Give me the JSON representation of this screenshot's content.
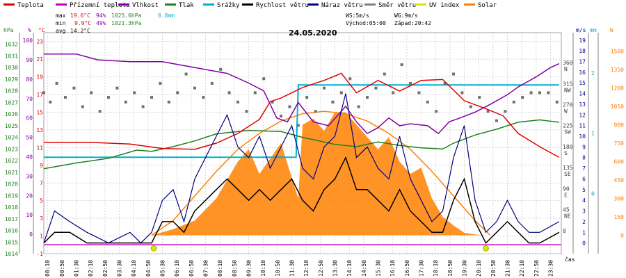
{
  "chart_data": {
    "type": "line",
    "title": "24.05.2020",
    "x_axis_label": "čas",
    "x_ticks": [
      "00:10",
      "00:50",
      "01:30",
      "02:10",
      "02:50",
      "03:30",
      "04:10",
      "04:50",
      "05:30",
      "06:10",
      "06:50",
      "07:30",
      "08:10",
      "08:50",
      "09:30",
      "10:10",
      "10:50",
      "11:30",
      "12:10",
      "12:50",
      "13:30",
      "14:10",
      "14:50",
      "15:30",
      "16:10",
      "16:50",
      "17:30",
      "18:10",
      "18:50",
      "19:30",
      "20:10",
      "20:50",
      "21:30",
      "22:10",
      "22:50",
      "23:30"
    ],
    "legend": [
      {
        "name": "Teplota",
        "color": "#e00000"
      },
      {
        "name": "Přízemní teplota",
        "color": "#c000c0"
      },
      {
        "name": "Vlhkost",
        "color": "#8000a0"
      },
      {
        "name": "Tlak",
        "color": "#208020"
      },
      {
        "name": "Srážky",
        "color": "#00b0d0"
      },
      {
        "name": "Rychlost větru",
        "color": "#000000"
      },
      {
        "name": "Náraz větru",
        "color": "#000080"
      },
      {
        "name": "Směr větru",
        "color": "#808080"
      },
      {
        "name": "UV index",
        "color": "#e0e000"
      },
      {
        "name": "Solar",
        "color": "#ff8000"
      }
    ],
    "stats": {
      "max": {
        "label": "max",
        "temp": "19.6°C",
        "hum": "94%",
        "press": "1025.6hPa",
        "rain": "0.8mm"
      },
      "min": {
        "label": "min",
        "temp": "9.9°C",
        "hum": "49%",
        "press": "1021.3hPa"
      },
      "avg": {
        "label": "avg",
        "temp": "14.2°C"
      },
      "ws": "WS:5m/s",
      "wg": "WG:9m/s",
      "sunrise": "Východ:05:00",
      "sunset": "Západ:20:42"
    },
    "axes": {
      "pressure": {
        "unit": "hPa",
        "ticks": [
          "1032",
          "1031",
          "1030",
          "1029",
          "1028",
          "1027",
          "1026",
          "1025",
          "1024",
          "1023",
          "1022",
          "1021",
          "1020",
          "1019",
          "1018",
          "1017",
          "1016",
          "1015",
          "1014"
        ]
      },
      "humidity": {
        "unit": "%",
        "ticks": [
          "100",
          "90",
          "80",
          "70",
          "60",
          "50",
          "40",
          "30",
          "20",
          "10",
          "0"
        ]
      },
      "temperature": {
        "unit": "°C",
        "ticks": [
          "23",
          "21",
          "19",
          "17",
          "15",
          "13",
          "11",
          "9",
          "7",
          "5",
          "3",
          "1",
          "-1"
        ]
      },
      "direction": {
        "ticks": [
          [
            "360",
            "N"
          ],
          [
            "315",
            "NW"
          ],
          [
            "270",
            "W"
          ],
          [
            "225",
            "SW"
          ],
          [
            "180",
            "S"
          ],
          [
            "135",
            "SE"
          ],
          [
            "90",
            "E"
          ],
          [
            "45",
            "NE"
          ],
          [
            "0",
            ""
          ]
        ]
      },
      "wind": {
        "unit": "m/s",
        "ticks": [
          "19",
          "18",
          "17",
          "16",
          "15",
          "14",
          "13",
          "12",
          "11",
          "10",
          "9",
          "8",
          "7",
          "6",
          "5",
          "4",
          "3",
          "2",
          "1",
          "0"
        ]
      },
      "rain": {
        "unit": "mm",
        "ticks": [
          "2",
          "1",
          "0"
        ]
      },
      "solar": {
        "unit": "W",
        "ticks": [
          "1500",
          "1350",
          "1200",
          "1050",
          "900",
          "750",
          "600",
          "450",
          "300",
          "150",
          "0"
        ]
      }
    },
    "series": {
      "temperature": [
        [
          0,
          11.6
        ],
        [
          2,
          11.6
        ],
        [
          4,
          11.4
        ],
        [
          5.5,
          10.9
        ],
        [
          7,
          10.8
        ],
        [
          8,
          11.5
        ],
        [
          9,
          12.6
        ],
        [
          10,
          14.2
        ],
        [
          10.5,
          16.2
        ],
        [
          11,
          16.6
        ],
        [
          12,
          17.8
        ],
        [
          13,
          18.6
        ],
        [
          13.8,
          19.4
        ],
        [
          14.5,
          17.2
        ],
        [
          15.5,
          18.6
        ],
        [
          16.5,
          17.4
        ],
        [
          17.5,
          18.6
        ],
        [
          18.5,
          18.7
        ],
        [
          19.5,
          16.3
        ],
        [
          20.5,
          15.4
        ],
        [
          21.3,
          14.6
        ],
        [
          22,
          12.6
        ],
        [
          23,
          11.1
        ],
        [
          23.9,
          9.9
        ]
      ],
      "humidity": [
        [
          0,
          93
        ],
        [
          1.5,
          93
        ],
        [
          2.5,
          90
        ],
        [
          4,
          89
        ],
        [
          5.5,
          89
        ],
        [
          6.5,
          87
        ],
        [
          7.5,
          85
        ],
        [
          8.5,
          83
        ],
        [
          9.5,
          78
        ],
        [
          10.2,
          74
        ],
        [
          10.8,
          60
        ],
        [
          11.3,
          58
        ],
        [
          11.8,
          68
        ],
        [
          12.5,
          58
        ],
        [
          13.2,
          56
        ],
        [
          14,
          66
        ],
        [
          14.5,
          58
        ],
        [
          15,
          52
        ],
        [
          15.5,
          55
        ],
        [
          16,
          60
        ],
        [
          16.5,
          56
        ],
        [
          17,
          57
        ],
        [
          17.8,
          56
        ],
        [
          18.3,
          52
        ],
        [
          18.8,
          58
        ],
        [
          19.3,
          60
        ],
        [
          20,
          63
        ],
        [
          20.7,
          67
        ],
        [
          21.5,
          72
        ],
        [
          22,
          76
        ],
        [
          22.8,
          81
        ],
        [
          23.5,
          86
        ],
        [
          23.9,
          88
        ]
      ],
      "pressure": [
        [
          0,
          1021.3
        ],
        [
          1.5,
          1021.8
        ],
        [
          3,
          1022.2
        ],
        [
          4.3,
          1022.9
        ],
        [
          5,
          1022.8
        ],
        [
          6,
          1023.2
        ],
        [
          7,
          1023.7
        ],
        [
          8,
          1024.3
        ],
        [
          9.5,
          1024.6
        ],
        [
          11,
          1024.5
        ],
        [
          12,
          1024.0
        ],
        [
          13.5,
          1023.4
        ],
        [
          14.5,
          1023.2
        ],
        [
          15.5,
          1023.6
        ],
        [
          16.5,
          1023.3
        ],
        [
          17.5,
          1023.1
        ],
        [
          18.5,
          1023.0
        ],
        [
          19,
          1023.5
        ],
        [
          20,
          1024.2
        ],
        [
          21,
          1024.7
        ],
        [
          22,
          1025.3
        ],
        [
          23,
          1025.5
        ],
        [
          23.9,
          1025.3
        ]
      ],
      "rain": [
        [
          0,
          0.6
        ],
        [
          11.7,
          0.6
        ],
        [
          11.8,
          1.8
        ],
        [
          23.9,
          1.8
        ]
      ],
      "wind_gust": [
        [
          0,
          0
        ],
        [
          0.5,
          3
        ],
        [
          1.2,
          2
        ],
        [
          2,
          1
        ],
        [
          3,
          0
        ],
        [
          4,
          1
        ],
        [
          4.5,
          0
        ],
        [
          5,
          1
        ],
        [
          5.5,
          4
        ],
        [
          6,
          5
        ],
        [
          6.5,
          2
        ],
        [
          7,
          6
        ],
        [
          7.5,
          8
        ],
        [
          8,
          10
        ],
        [
          8.5,
          12
        ],
        [
          9,
          9
        ],
        [
          9.5,
          8
        ],
        [
          10,
          10
        ],
        [
          10.5,
          7
        ],
        [
          11,
          9
        ],
        [
          11.5,
          11
        ],
        [
          12,
          7
        ],
        [
          12.5,
          6
        ],
        [
          13,
          9
        ],
        [
          13.5,
          10
        ],
        [
          14,
          14
        ],
        [
          14.5,
          8
        ],
        [
          15,
          9
        ],
        [
          15.5,
          7
        ],
        [
          16,
          6
        ],
        [
          16.5,
          10
        ],
        [
          17,
          6
        ],
        [
          17.5,
          4
        ],
        [
          18,
          2
        ],
        [
          18.5,
          3
        ],
        [
          19,
          8
        ],
        [
          19.5,
          11
        ],
        [
          20,
          4
        ],
        [
          20.5,
          1
        ],
        [
          21,
          2
        ],
        [
          21.5,
          4
        ],
        [
          22,
          2
        ],
        [
          22.5,
          1
        ],
        [
          23,
          1
        ],
        [
          23.9,
          2
        ]
      ],
      "wind_speed": [
        [
          0,
          0
        ],
        [
          0.5,
          1
        ],
        [
          1.2,
          1
        ],
        [
          2,
          0
        ],
        [
          3,
          0
        ],
        [
          4,
          0
        ],
        [
          5,
          0
        ],
        [
          5.5,
          2
        ],
        [
          6,
          2
        ],
        [
          6.5,
          1
        ],
        [
          7,
          3
        ],
        [
          7.5,
          4
        ],
        [
          8,
          5
        ],
        [
          8.5,
          6
        ],
        [
          9,
          5
        ],
        [
          9.5,
          4
        ],
        [
          10,
          5
        ],
        [
          10.5,
          4
        ],
        [
          11,
          5
        ],
        [
          11.5,
          6
        ],
        [
          12,
          4
        ],
        [
          12.5,
          3
        ],
        [
          13,
          5
        ],
        [
          13.5,
          6
        ],
        [
          14,
          8
        ],
        [
          14.5,
          5
        ],
        [
          15,
          5
        ],
        [
          15.5,
          4
        ],
        [
          16,
          3
        ],
        [
          16.5,
          5
        ],
        [
          17,
          3
        ],
        [
          17.5,
          2
        ],
        [
          18,
          1
        ],
        [
          18.5,
          1
        ],
        [
          19,
          4
        ],
        [
          19.5,
          6
        ],
        [
          20,
          2
        ],
        [
          20.5,
          0
        ],
        [
          21,
          1
        ],
        [
          21.5,
          2
        ],
        [
          22,
          1
        ],
        [
          22.5,
          0
        ],
        [
          23,
          0
        ],
        [
          23.9,
          1
        ]
      ],
      "solar": [
        [
          0,
          0
        ],
        [
          5,
          0
        ],
        [
          6,
          50
        ],
        [
          7,
          120
        ],
        [
          8,
          300
        ],
        [
          9,
          600
        ],
        [
          9.5,
          700
        ],
        [
          10,
          500
        ],
        [
          11,
          750
        ],
        [
          11.8,
          300
        ],
        [
          12,
          900
        ],
        [
          12.5,
          950
        ],
        [
          13,
          850
        ],
        [
          13.5,
          1000
        ],
        [
          14,
          1000
        ],
        [
          14.5,
          900
        ],
        [
          15,
          800
        ],
        [
          15.5,
          700
        ],
        [
          16,
          800
        ],
        [
          16.5,
          600
        ],
        [
          17,
          500
        ],
        [
          17.5,
          550
        ],
        [
          18,
          300
        ],
        [
          18.5,
          150
        ],
        [
          19,
          80
        ],
        [
          19.5,
          20
        ],
        [
          20.3,
          0
        ],
        [
          23.9,
          0
        ]
      ],
      "solar_theoretical": [
        [
          5,
          0
        ],
        [
          6,
          120
        ],
        [
          7,
          320
        ],
        [
          8,
          520
        ],
        [
          9,
          700
        ],
        [
          10,
          830
        ],
        [
          11,
          930
        ],
        [
          12,
          990
        ],
        [
          13,
          1010
        ],
        [
          14,
          990
        ],
        [
          15,
          930
        ],
        [
          16,
          830
        ],
        [
          17,
          700
        ],
        [
          18,
          520
        ],
        [
          19,
          320
        ],
        [
          20,
          120
        ],
        [
          20.7,
          0
        ]
      ],
      "direction": [
        [
          0,
          300
        ],
        [
          0.3,
          280
        ],
        [
          0.6,
          320
        ],
        [
          1,
          290
        ],
        [
          1.4,
          310
        ],
        [
          1.8,
          270
        ],
        [
          2.2,
          300
        ],
        [
          2.6,
          260
        ],
        [
          3,
          290
        ],
        [
          3.4,
          310
        ],
        [
          3.8,
          280
        ],
        [
          4.2,
          300
        ],
        [
          4.6,
          270
        ],
        [
          5,
          290
        ],
        [
          5.4,
          320
        ],
        [
          5.8,
          280
        ],
        [
          6.2,
          300
        ],
        [
          6.6,
          340
        ],
        [
          7,
          310
        ],
        [
          7.4,
          290
        ],
        [
          7.8,
          320
        ],
        [
          8.2,
          350
        ],
        [
          8.6,
          300
        ],
        [
          9,
          280
        ],
        [
          9.4,
          260
        ],
        [
          9.8,
          300
        ],
        [
          10.2,
          330
        ],
        [
          10.6,
          280
        ],
        [
          11,
          250
        ],
        [
          11.4,
          270
        ],
        [
          11.8,
          230
        ],
        [
          12.2,
          290
        ],
        [
          12.6,
          260
        ],
        [
          13,
          310
        ],
        [
          13.4,
          280
        ],
        [
          13.8,
          300
        ],
        [
          14.2,
          330
        ],
        [
          14.6,
          270
        ],
        [
          15,
          290
        ],
        [
          15.4,
          310
        ],
        [
          15.8,
          340
        ],
        [
          16.2,
          300
        ],
        [
          16.6,
          360
        ],
        [
          17,
          320
        ],
        [
          17.4,
          300
        ],
        [
          17.8,
          280
        ],
        [
          18.2,
          260
        ],
        [
          18.6,
          320
        ],
        [
          19,
          340
        ],
        [
          19.4,
          300
        ],
        [
          19.8,
          270
        ],
        [
          20.2,
          290
        ],
        [
          20.6,
          260
        ],
        [
          21,
          240
        ],
        [
          21.4,
          260
        ],
        [
          21.8,
          280
        ],
        [
          22.2,
          290
        ],
        [
          22.6,
          300
        ],
        [
          23,
          300
        ],
        [
          23.4,
          300
        ],
        [
          23.8,
          280
        ]
      ],
      "uv_points": [
        [
          5.1,
          0
        ],
        [
          20.5,
          0
        ]
      ]
    }
  }
}
